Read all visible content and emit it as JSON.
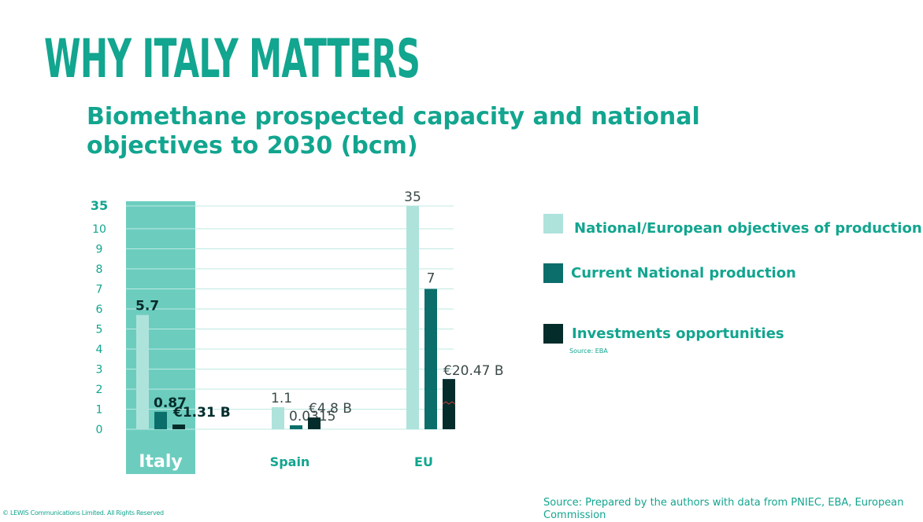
{
  "title": "WHY ITALY MATTERS",
  "subtitle_line1": "Biomethane prospected capacity and national",
  "subtitle_line2": "objectives to 2030 (bcm)",
  "legend": [
    {
      "label": "National/European objectives of production",
      "color": "#aee3dc"
    },
    {
      "label": "Current National production",
      "color": "#0b6e6b"
    },
    {
      "label": "Investments opportunities",
      "color": "#042c2b"
    }
  ],
  "legend_source": "Source: EBA",
  "source": "Source: Prepared by the authors with data from PNIEC, EBA, European Commission",
  "copyright": "© LEWIS Communications Limited. All Rights Reserved",
  "colors": {
    "accent": "#12a58f",
    "highlight_band": "#6ccdbf",
    "gridline": "#bfe9e3"
  },
  "chart_data": {
    "type": "bar",
    "title": "Biomethane prospected capacity and national objectives to 2030 (bcm)",
    "y_ticks": [
      "0",
      "1",
      "2",
      "3",
      "4",
      "5",
      "6",
      "7",
      "8",
      "9",
      "10",
      "35"
    ],
    "y_scale": "broken axis: linear 0–10, top tick 35",
    "categories": [
      "Italy",
      "Spain",
      "EU"
    ],
    "highlighted_category": "Italy",
    "series": [
      {
        "name": "National/European objectives of production",
        "color": "#aee3dc",
        "values": [
          5.7,
          1.1,
          35
        ],
        "labels": [
          "5.7",
          "1.1",
          "35"
        ]
      },
      {
        "name": "Current National production",
        "color": "#0b6e6b",
        "values": [
          0.87,
          0.0315,
          7
        ],
        "labels": [
          "0.87",
          "0.0315",
          "7"
        ]
      },
      {
        "name": "Investments opportunities",
        "color": "#042c2b",
        "values": [
          1.31,
          4.8,
          20.47
        ],
        "labels": [
          "€1.31 B",
          "€4.8 B",
          "€20.47 B"
        ],
        "unit": "€ B"
      }
    ]
  }
}
